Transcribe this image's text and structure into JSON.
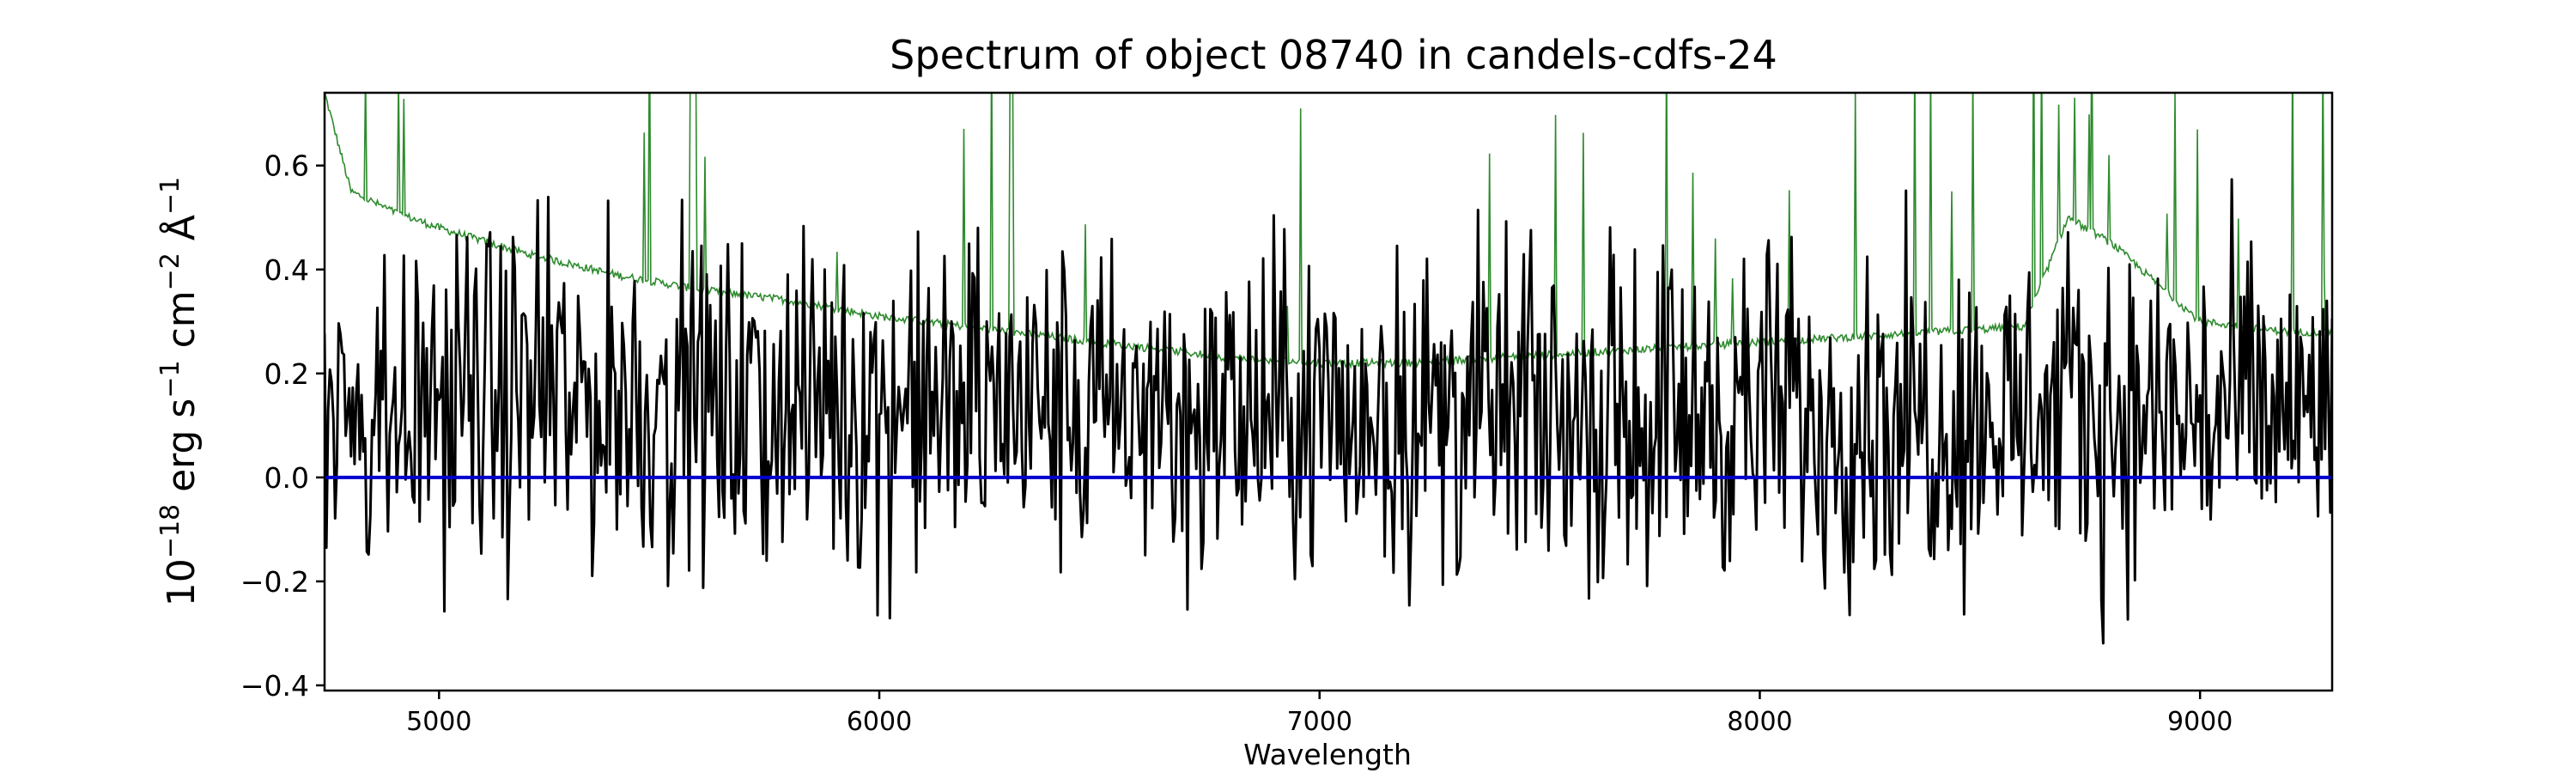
{
  "chart_data": {
    "type": "line",
    "title": "Spectrum of object 08740 in candels-cdfs-24",
    "xlabel": "Wavelength",
    "ylabel": {
      "base": "10",
      "exp1": "−18",
      "part1": " erg s",
      "exp2": "−1",
      "part2": " cm",
      "exp3": "−2",
      "part3": " Å",
      "exp4": "−1"
    },
    "xlim": [
      4740,
      9300
    ],
    "ylim": [
      -0.41,
      0.74
    ],
    "xticks": [
      5000,
      6000,
      7000,
      8000,
      9000
    ],
    "xtick_labels": [
      "5000",
      "6000",
      "7000",
      "8000",
      "9000"
    ],
    "yticks": [
      -0.4,
      -0.2,
      0.0,
      0.2,
      0.4,
      0.6
    ],
    "ytick_labels": [
      "−0.4",
      "−0.2",
      "0.0",
      "0.2",
      "0.4",
      "0.6"
    ],
    "grid": false,
    "legend": "none",
    "colors": {
      "flux": "#000000",
      "error": "#2e8b2e",
      "zero": "#0000cd"
    },
    "series": [
      {
        "key": "flux",
        "style": "noisy spectrum, mean near 0.15, amplitude about ±0.35",
        "x": [
          4740,
          4900,
          5100,
          5300,
          5500,
          5700,
          5900,
          6100,
          6300,
          6500,
          6700,
          6900,
          7100,
          7300,
          7500,
          7700,
          7900,
          8100,
          8300,
          8500,
          8700,
          8900,
          9100,
          9300
        ],
        "y": [
          0.15,
          0.14,
          0.15,
          0.14,
          0.15,
          0.13,
          0.14,
          0.13,
          0.14,
          0.12,
          0.12,
          0.12,
          0.12,
          0.13,
          0.12,
          0.12,
          0.13,
          0.12,
          0.12,
          0.12,
          0.12,
          0.12,
          0.12,
          0.12
        ]
      },
      {
        "key": "error",
        "style": "error envelope with sky-line spikes",
        "x": [
          4740,
          4800,
          4900,
          5000,
          5200,
          5400,
          5600,
          5800,
          6000,
          6200,
          6400,
          6600,
          6800,
          7000,
          7200,
          7400,
          7600,
          7800,
          8000,
          8200,
          8400,
          8600,
          8700,
          8800,
          9000,
          9200,
          9300
        ],
        "y": [
          0.74,
          0.55,
          0.51,
          0.48,
          0.43,
          0.39,
          0.36,
          0.34,
          0.31,
          0.29,
          0.27,
          0.25,
          0.23,
          0.22,
          0.22,
          0.23,
          0.24,
          0.25,
          0.26,
          0.27,
          0.28,
          0.29,
          0.5,
          0.45,
          0.3,
          0.28,
          0.28
        ]
      },
      {
        "key": "zero",
        "style": "zero reference line",
        "x": [
          4740,
          9300
        ],
        "y": [
          0,
          0
        ]
      }
    ]
  }
}
